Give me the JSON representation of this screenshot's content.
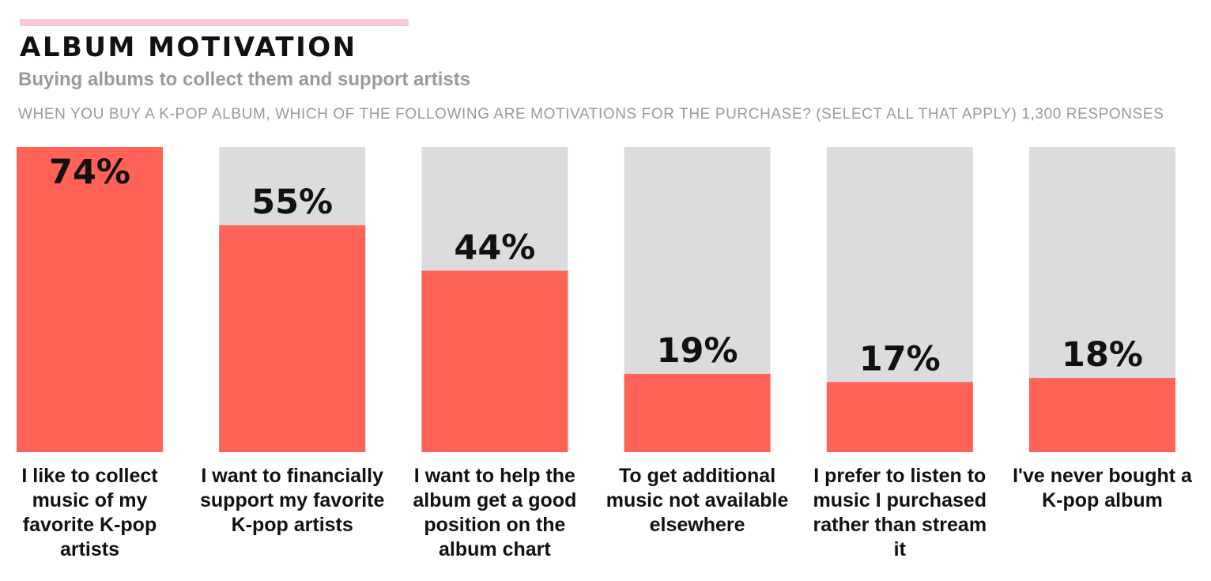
{
  "header": {
    "title": "ALBUM MOTIVATION",
    "subtitle": "Buying albums to collect them and support artists",
    "question": "WHEN YOU BUY A K-POP ALBUM, WHICH OF THE FOLLOWING ARE MOTIVATIONS FOR THE PURCHASE? (SELECT ALL THAT APPLY) 1,300 RESPONSES"
  },
  "colors": {
    "accent": "#f9c6dc",
    "bar_fill": "#ff6257",
    "bar_track": "#dcdcde",
    "text_dark": "#111111",
    "text_gray": "#9a9a9a"
  },
  "chart_data": {
    "type": "bar",
    "title": "ALBUM MOTIVATION",
    "subtitle": "Buying albums to collect them and support artists",
    "categories": [
      "I like to collect music of my favorite K-pop artists",
      "I want to financially support my favorite K-pop artists",
      "I want to help the album get a good position on the album chart",
      "To get additional music not available elsewhere",
      "I prefer to listen to music I purchased rather than stream it",
      "I've never bought a K-pop album"
    ],
    "values": [
      74,
      55,
      44,
      19,
      17,
      18
    ],
    "value_labels": [
      "74%",
      "55%",
      "44%",
      "19%",
      "17%",
      "18%"
    ],
    "ylim": [
      0,
      74
    ],
    "xlabel": "",
    "ylabel": "",
    "grid": false,
    "legend": "none"
  }
}
